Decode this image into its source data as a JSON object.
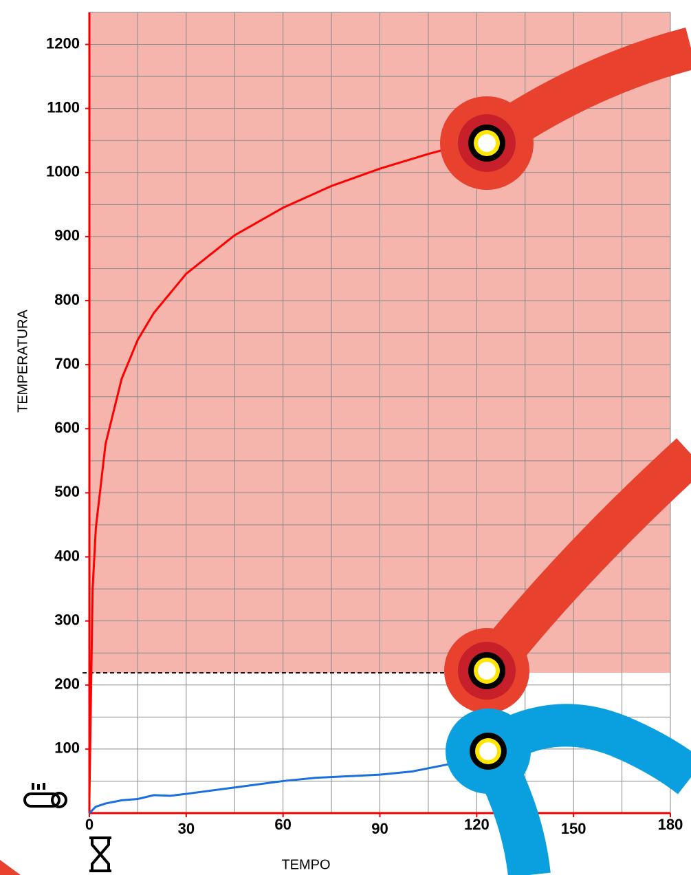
{
  "chart_data": {
    "type": "line",
    "x_label": "TEMPO",
    "y_label": "TEMPERATURA",
    "xlim": [
      0,
      180
    ],
    "ylim": [
      0,
      1250
    ],
    "xticks": [
      0,
      30,
      60,
      90,
      120,
      150,
      180
    ],
    "yticks": [
      100,
      200,
      300,
      400,
      500,
      600,
      700,
      800,
      900,
      1000,
      1100,
      1200
    ],
    "minor_xgrid": [
      15,
      45,
      75,
      105,
      135,
      165
    ],
    "minor_ygrid": [
      50,
      150,
      250,
      350,
      450,
      550,
      650,
      750,
      850,
      950,
      1050,
      1150,
      1250
    ],
    "grid": true,
    "shade_above": 219,
    "shade_color": "#f5b5ad",
    "reference": {
      "y": 219,
      "x_end": 120
    },
    "series": [
      {
        "color": "#ff0000",
        "x": [
          0,
          1,
          2,
          5,
          10,
          15,
          20,
          30,
          45,
          60,
          75,
          90,
          105,
          120
        ],
        "values": [
          20,
          349,
          445,
          576,
          678,
          739,
          781,
          842,
          902,
          945,
          979,
          1006,
          1029,
          1049
        ]
      },
      {
        "color": "#1a6fe0",
        "x": [
          0,
          2,
          5,
          10,
          15,
          20,
          25,
          30,
          45,
          60,
          70,
          90,
          100,
          110,
          120
        ],
        "values": [
          0,
          10,
          15,
          20,
          22,
          28,
          27,
          30,
          40,
          50,
          55,
          60,
          65,
          75,
          85
        ]
      }
    ]
  }
}
